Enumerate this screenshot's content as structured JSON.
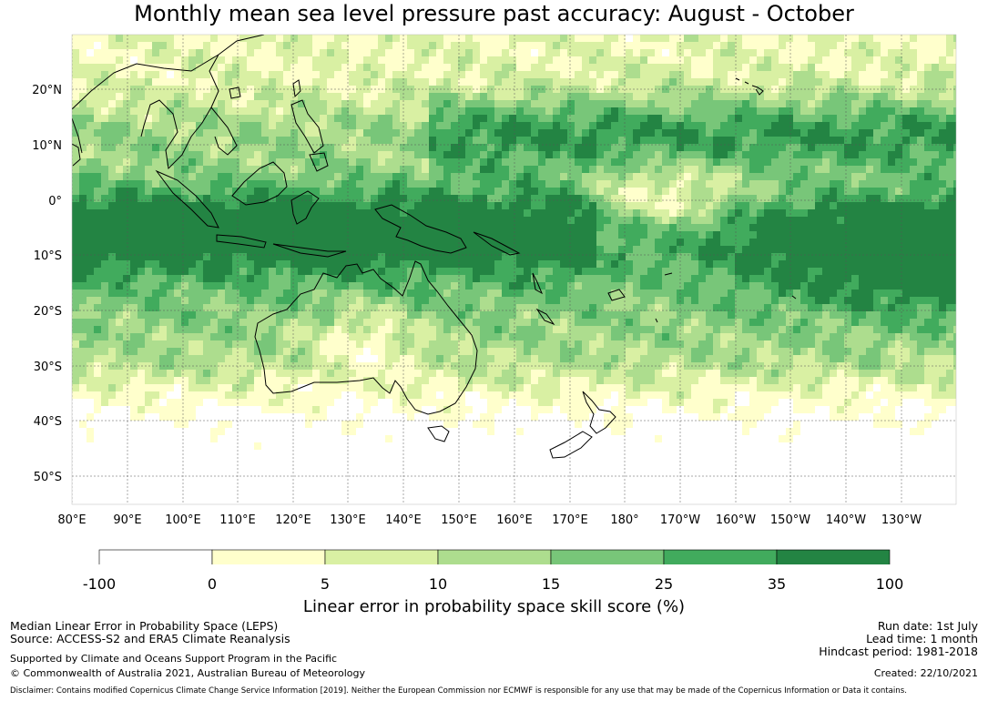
{
  "title": "Monthly mean sea level pressure past accuracy: August - October",
  "map": {
    "lon_labels": [
      "80°E",
      "90°E",
      "100°E",
      "110°E",
      "120°E",
      "130°E",
      "140°E",
      "150°E",
      "160°E",
      "170°E",
      "180°",
      "170°W",
      "160°W",
      "150°W",
      "140°W",
      "130°W"
    ],
    "lat_labels": [
      "20°N",
      "10°N",
      "0°",
      "10°S",
      "20°S",
      "30°S",
      "40°S",
      "50°S"
    ],
    "land_outline_color": "#000000",
    "gridline_color": "#555555"
  },
  "colorbar": {
    "ticks": [
      "-100",
      "0",
      "5",
      "10",
      "15",
      "25",
      "35",
      "100"
    ],
    "colors": [
      "#ffffff",
      "#ffffcc",
      "#d9f0a3",
      "#addd8e",
      "#78c679",
      "#41ab5d",
      "#238443"
    ],
    "label": "Linear error in probability space skill score (%)"
  },
  "footer": {
    "left": [
      "Median Linear Error in Probability Space (LEPS)",
      "Source: ACCESS-S2 and ERA5 Climate Reanalysis",
      "Supported by Climate and Oceans Support Program in the Pacific",
      "© Commonwealth of Australia 2021, Australian Bureau of Meteorology"
    ],
    "right": [
      "Run date: 1st July",
      "Lead time: 1 month",
      "Hindcast period: 1981-2018",
      "Created: 22/10/2021"
    ],
    "disclaimer": "Disclaimer: Contains modified Copernicus Climate Change Service Information [2019]. Neither the European Commission nor ECMWF is responsible for any use that may be made of the Copernicus Information or Data it contains."
  }
}
